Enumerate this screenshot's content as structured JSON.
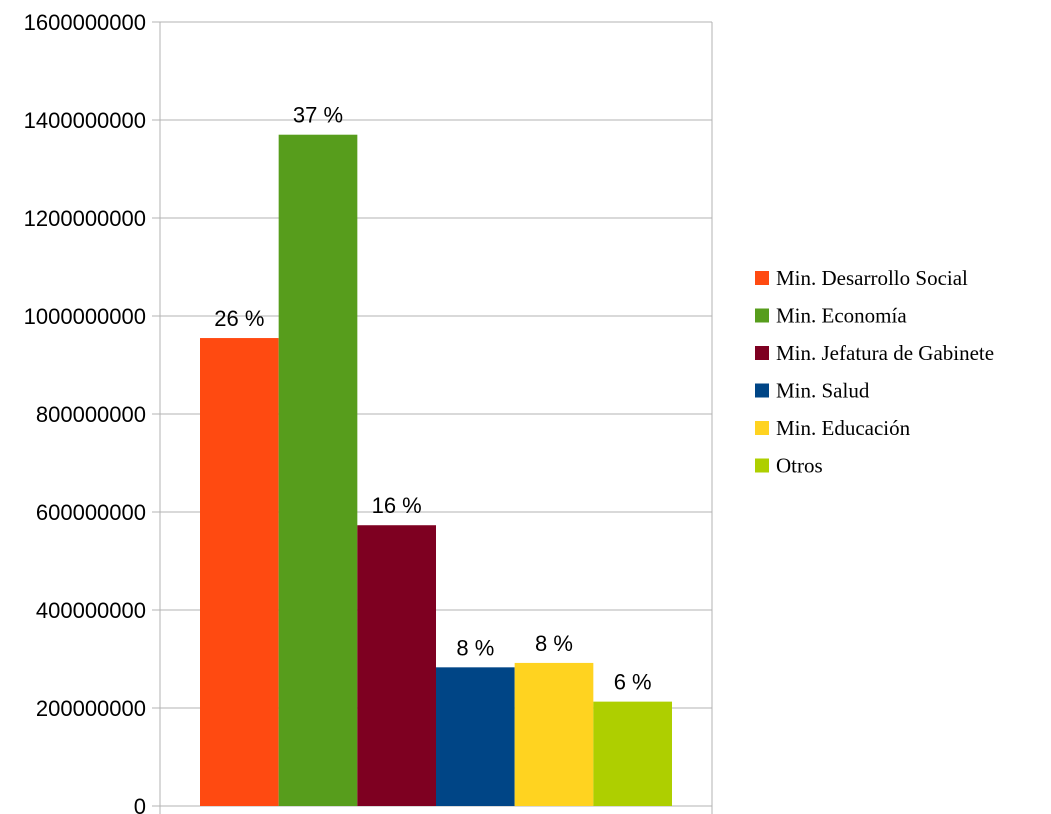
{
  "chart_data": {
    "type": "bar",
    "title": "",
    "xlabel": "",
    "ylabel": "",
    "ylim": [
      0,
      1600000000
    ],
    "yticks": [
      0,
      200000000,
      400000000,
      600000000,
      800000000,
      1000000000,
      1200000000,
      1400000000,
      1600000000
    ],
    "ytick_labels": [
      "0",
      "200000000",
      "400000000",
      "600000000",
      "800000000",
      "1000000000",
      "1200000000",
      "1400000000",
      "1600000000"
    ],
    "grid": true,
    "legend_position": "right",
    "series": [
      {
        "name": "Min. Desarrollo Social",
        "value": 955000000,
        "label": "26 %",
        "color": "#ff4a11"
      },
      {
        "name": "Min. Economía",
        "value": 1370000000,
        "label": "37 %",
        "color": "#579d1c"
      },
      {
        "name": "Min. Jefatura de Gabinete",
        "value": 573000000,
        "label": "16 %",
        "color": "#7e0021"
      },
      {
        "name": "Min. Salud",
        "value": 283000000,
        "label": "8 %",
        "color": "#004586"
      },
      {
        "name": "Min. Educación",
        "value": 292000000,
        "label": "8 %",
        "color": "#ffd320"
      },
      {
        "name": "Otros",
        "value": 213000000,
        "label": "6 %",
        "color": "#aecf00"
      }
    ]
  }
}
